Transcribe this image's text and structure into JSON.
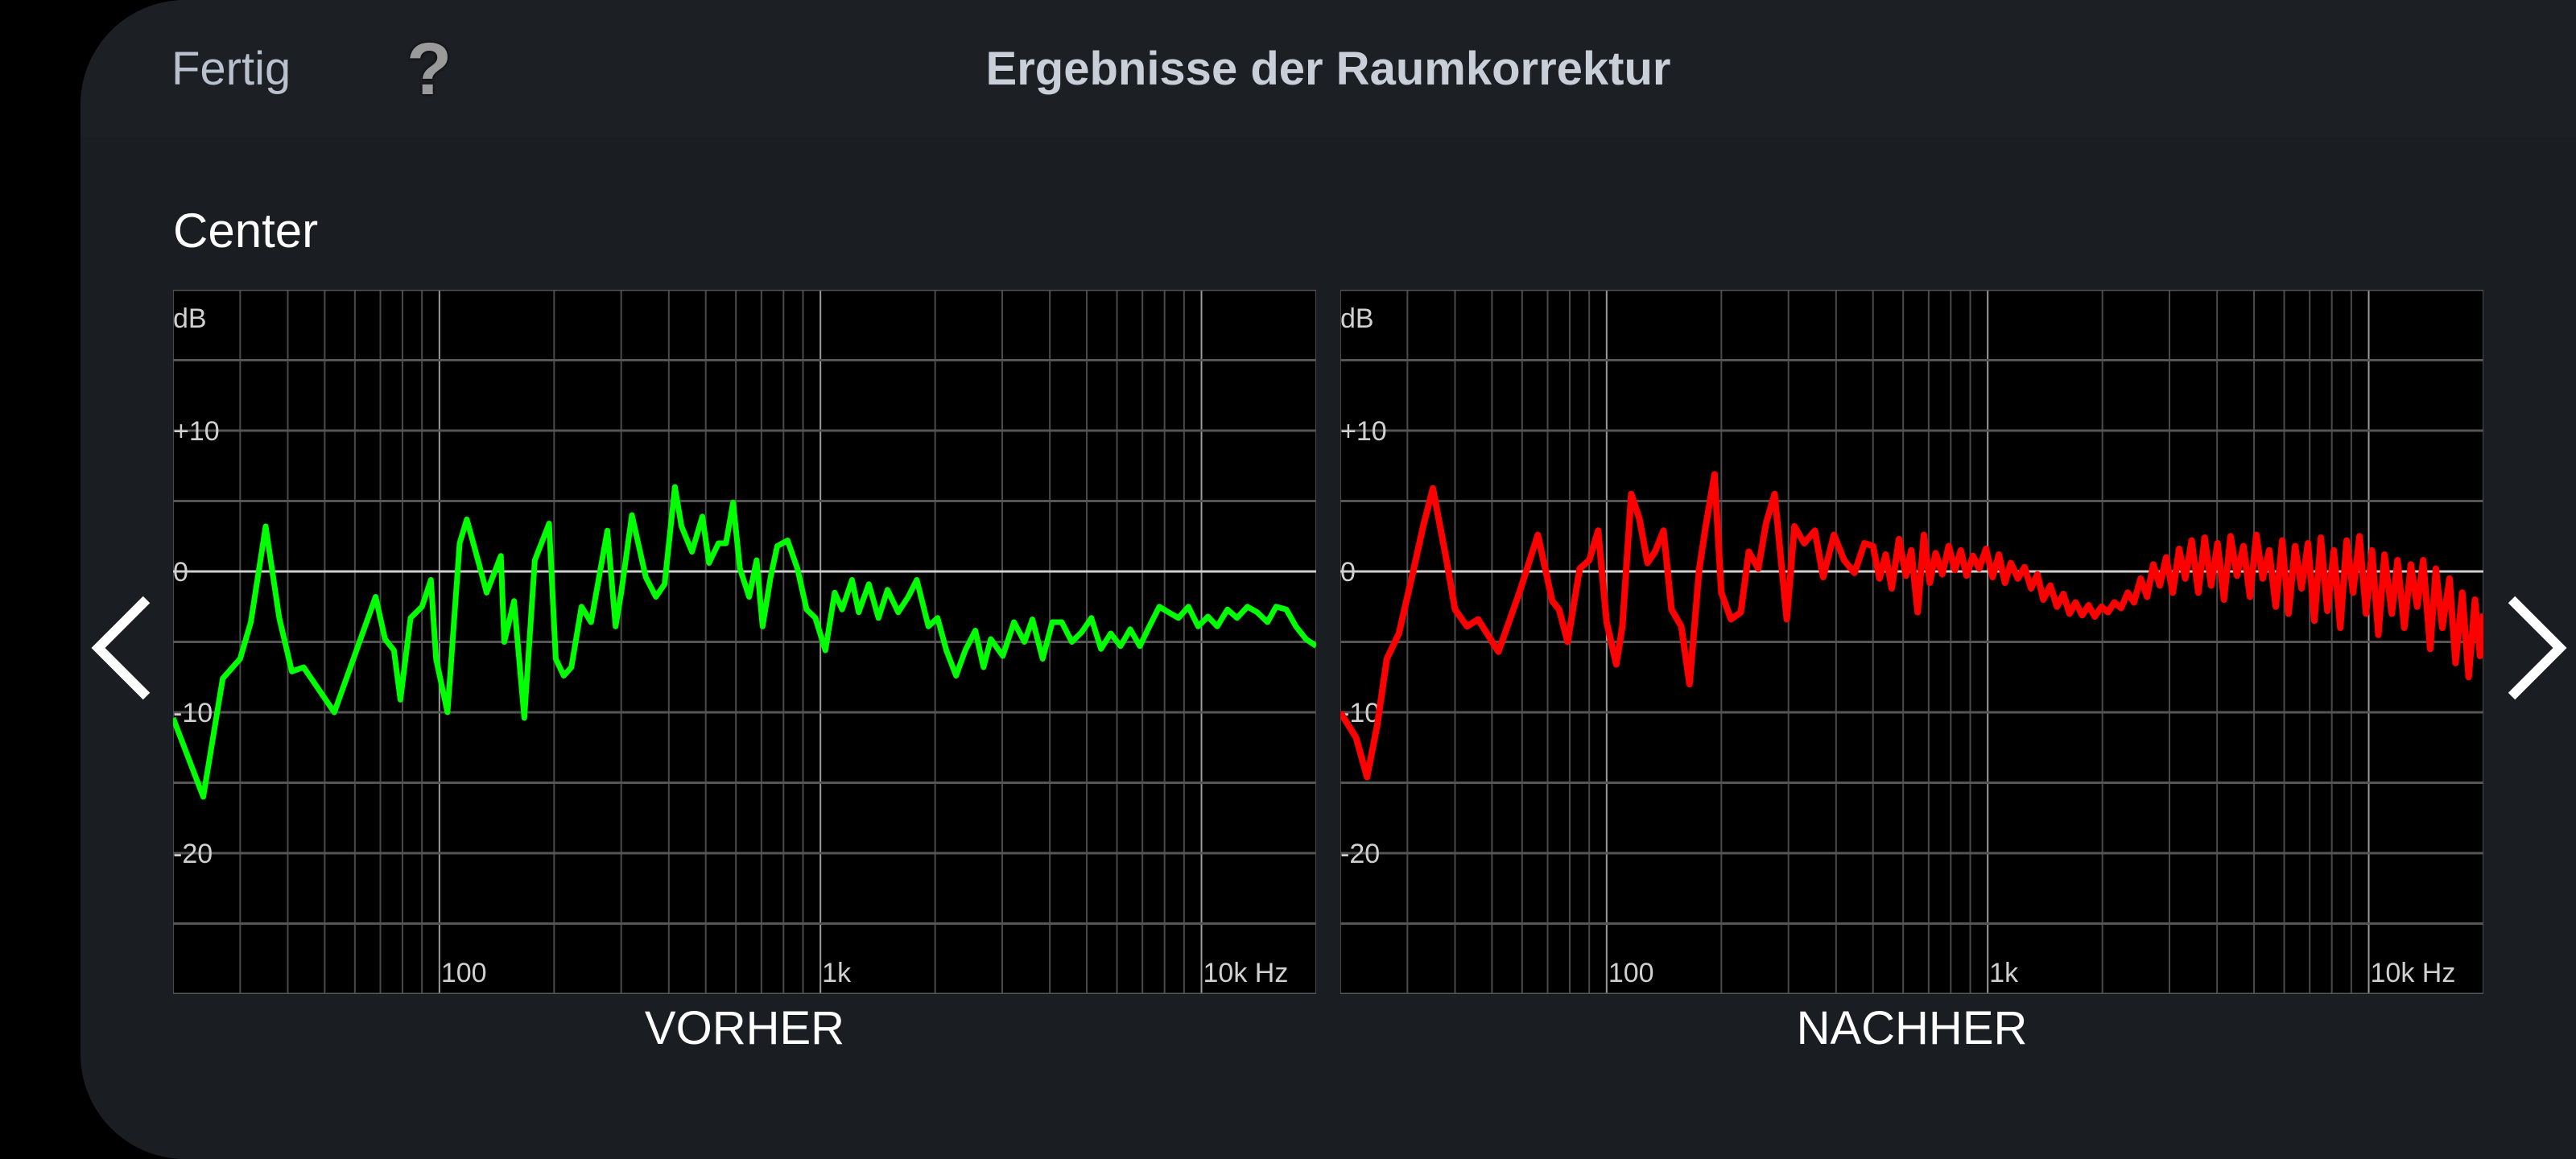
{
  "header": {
    "done_label": "Fertig",
    "help_label": "?",
    "title": "Ergebnisse der Raumkorrektur"
  },
  "channel": "Center",
  "navigation": {
    "prev_icon": "chevron-left-icon",
    "next_icon": "chevron-right-icon"
  },
  "colors": {
    "before": "#00ff00",
    "after": "#ff0000",
    "panel": "#1a1d22",
    "plot_bg": "#000000"
  },
  "chart_data": [
    {
      "type": "line",
      "title": "VORHER",
      "ylabel": "dB",
      "xlabel": "Hz",
      "xscale": "log",
      "xlim": [
        20,
        20000
      ],
      "ylim": [
        -30,
        20
      ],
      "grid": true,
      "y_ticks": [
        {
          "value": 10,
          "label": "+10"
        },
        {
          "value": 0,
          "label": "0"
        },
        {
          "value": -10,
          "label": "-10"
        },
        {
          "value": -20,
          "label": "-20"
        }
      ],
      "x_ticks": [
        {
          "value": 100,
          "label": "100"
        },
        {
          "value": 1000,
          "label": "1k"
        },
        {
          "value": 10000,
          "label": "10k Hz"
        }
      ],
      "series": [
        {
          "name": "VORHER",
          "color": "#00ff00",
          "points": [
            [
              20,
              -10.4
            ],
            [
              24,
              -16
            ],
            [
              27,
              -7.6
            ],
            [
              30,
              -6.2
            ],
            [
              32,
              -3.6
            ],
            [
              35,
              3.2
            ],
            [
              38,
              -3.3
            ],
            [
              41,
              -7.1
            ],
            [
              44,
              -6.8
            ],
            [
              53,
              -10
            ],
            [
              68,
              -1.8
            ],
            [
              72,
              -4.8
            ],
            [
              76,
              -5.6
            ],
            [
              79,
              -9.1
            ],
            [
              84,
              -3.3
            ],
            [
              90,
              -2.5
            ],
            [
              95,
              -0.6
            ],
            [
              98,
              -6.2
            ],
            [
              105,
              -10
            ],
            [
              113,
              2
            ],
            [
              118,
              3.7
            ],
            [
              128,
              0.2
            ],
            [
              133,
              -1.5
            ],
            [
              145,
              1.1
            ],
            [
              148,
              -5
            ],
            [
              157,
              -2.1
            ],
            [
              167,
              -10.4
            ],
            [
              178,
              0.8
            ],
            [
              194,
              3.4
            ],
            [
              202,
              -6.2
            ],
            [
              212,
              -7.4
            ],
            [
              222,
              -6.8
            ],
            [
              236,
              -2.5
            ],
            [
              250,
              -3.6
            ],
            [
              276,
              2.9
            ],
            [
              290,
              -3.9
            ],
            [
              300,
              -1.5
            ],
            [
              320,
              4
            ],
            [
              348,
              -0.4
            ],
            [
              370,
              -1.8
            ],
            [
              390,
              -0.9
            ],
            [
              415,
              6
            ],
            [
              432,
              3.2
            ],
            [
              460,
              1.4
            ],
            [
              490,
              3.9
            ],
            [
              510,
              0.6
            ],
            [
              540,
              2
            ],
            [
              565,
              2
            ],
            [
              590,
              4.9
            ],
            [
              615,
              0.2
            ],
            [
              650,
              -1.8
            ],
            [
              680,
              0.8
            ],
            [
              705,
              -3.9
            ],
            [
              740,
              -0.4
            ],
            [
              770,
              1.8
            ],
            [
              820,
              2.2
            ],
            [
              870,
              0.2
            ],
            [
              920,
              -2.7
            ],
            [
              970,
              -3.3
            ],
            [
              1030,
              -5.6
            ],
            [
              1090,
              -1.5
            ],
            [
              1140,
              -2.7
            ],
            [
              1210,
              -0.6
            ],
            [
              1260,
              -2.9
            ],
            [
              1340,
              -0.9
            ],
            [
              1420,
              -3.3
            ],
            [
              1500,
              -1.3
            ],
            [
              1600,
              -2.9
            ],
            [
              1700,
              -1.8
            ],
            [
              1790,
              -0.6
            ],
            [
              1920,
              -3.9
            ],
            [
              2030,
              -3.3
            ],
            [
              2140,
              -5.6
            ],
            [
              2270,
              -7.4
            ],
            [
              2400,
              -5.6
            ],
            [
              2550,
              -4.2
            ],
            [
              2680,
              -6.8
            ],
            [
              2800,
              -4.8
            ],
            [
              3010,
              -6
            ],
            [
              3220,
              -3.6
            ],
            [
              3430,
              -5
            ],
            [
              3600,
              -3.4
            ],
            [
              3830,
              -6.2
            ],
            [
              4060,
              -3.6
            ],
            [
              4300,
              -3.6
            ],
            [
              4570,
              -5
            ],
            [
              4850,
              -4.3
            ],
            [
              5140,
              -3.3
            ],
            [
              5450,
              -5.5
            ],
            [
              5780,
              -4.4
            ],
            [
              6130,
              -5.3
            ],
            [
              6500,
              -4.1
            ],
            [
              6890,
              -5.3
            ],
            [
              7300,
              -3.9
            ],
            [
              7750,
              -2.5
            ],
            [
              8200,
              -2.9
            ],
            [
              8700,
              -3.3
            ],
            [
              9240,
              -2.5
            ],
            [
              9800,
              -3.9
            ],
            [
              10400,
              -3.2
            ],
            [
              11000,
              -3.9
            ],
            [
              11700,
              -2.7
            ],
            [
              12400,
              -3.3
            ],
            [
              13200,
              -2.5
            ],
            [
              14000,
              -2.9
            ],
            [
              14900,
              -3.6
            ],
            [
              15700,
              -2.5
            ],
            [
              16700,
              -2.7
            ],
            [
              17700,
              -3.9
            ],
            [
              18800,
              -4.8
            ],
            [
              20000,
              -5.3
            ]
          ]
        }
      ]
    },
    {
      "type": "line",
      "title": "NACHHER",
      "ylabel": "dB",
      "xlabel": "Hz",
      "xscale": "log",
      "xlim": [
        20,
        20000
      ],
      "ylim": [
        -30,
        20
      ],
      "grid": true,
      "y_ticks": [
        {
          "value": 10,
          "label": "+10"
        },
        {
          "value": 0,
          "label": "0"
        },
        {
          "value": -10,
          "label": "-10"
        },
        {
          "value": -20,
          "label": "-20"
        }
      ],
      "x_ticks": [
        {
          "value": 100,
          "label": "100"
        },
        {
          "value": 1000,
          "label": "1k"
        },
        {
          "value": 10000,
          "label": "10k Hz"
        }
      ],
      "series": [
        {
          "name": "NACHHER",
          "color": "#ff0000",
          "points": [
            [
              20,
              -10
            ],
            [
              22,
              -11.8
            ],
            [
              23.5,
              -14.6
            ],
            [
              25,
              -10.9
            ],
            [
              26.5,
              -6.2
            ],
            [
              28.5,
              -4.4
            ],
            [
              31,
              -0.1
            ],
            [
              33,
              3.2
            ],
            [
              35,
              5.9
            ],
            [
              38,
              0.8
            ],
            [
              40,
              -2.7
            ],
            [
              43,
              -3.9
            ],
            [
              46,
              -3.4
            ],
            [
              52,
              -5.7
            ],
            [
              59,
              -1.5
            ],
            [
              66,
              2.6
            ],
            [
              72,
              -2.1
            ],
            [
              75,
              -2.7
            ],
            [
              79,
              -5
            ],
            [
              85,
              0.2
            ],
            [
              90,
              0.8
            ],
            [
              95,
              2.9
            ],
            [
              100,
              -3.6
            ],
            [
              106,
              -6.6
            ],
            [
              110,
              -3.9
            ],
            [
              116,
              5.5
            ],
            [
              122,
              3.7
            ],
            [
              128,
              0.6
            ],
            [
              134,
              1.4
            ],
            [
              141,
              2.9
            ],
            [
              148,
              -2.7
            ],
            [
              157,
              -3.9
            ],
            [
              165,
              -8
            ],
            [
              175,
              0.2
            ],
            [
              182,
              3.2
            ],
            [
              192,
              6.9
            ],
            [
              200,
              -1.5
            ],
            [
              212,
              -3.4
            ],
            [
              225,
              -2.9
            ],
            [
              236,
              1.4
            ],
            [
              250,
              0.2
            ],
            [
              262,
              3.4
            ],
            [
              276,
              5.5
            ],
            [
              297,
              -3.4
            ],
            [
              311,
              3.2
            ],
            [
              330,
              2
            ],
            [
              352,
              2.9
            ],
            [
              370,
              -0.4
            ],
            [
              395,
              2.6
            ],
            [
              420,
              0.8
            ],
            [
              447,
              -0.1
            ],
            [
              475,
              2
            ],
            [
              500,
              1.8
            ],
            [
              520,
              -0.5
            ],
            [
              540,
              1.2
            ],
            [
              560,
              -1.2
            ],
            [
              585,
              2.3
            ],
            [
              610,
              -0.3
            ],
            [
              630,
              1.5
            ],
            [
              655,
              -2.9
            ],
            [
              680,
              2.6
            ],
            [
              705,
              -0.8
            ],
            [
              730,
              1.3
            ],
            [
              760,
              -0.2
            ],
            [
              790,
              1.8
            ],
            [
              820,
              0.1
            ],
            [
              850,
              1.5
            ],
            [
              880,
              -0.3
            ],
            [
              915,
              1.1
            ],
            [
              950,
              0.2
            ],
            [
              990,
              1.6
            ],
            [
              1030,
              -0.4
            ],
            [
              1070,
              1.2
            ],
            [
              1110,
              -0.8
            ],
            [
              1150,
              0.6
            ],
            [
              1200,
              -0.5
            ],
            [
              1250,
              0.3
            ],
            [
              1300,
              -1.2
            ],
            [
              1350,
              -0.2
            ],
            [
              1400,
              -2.0
            ],
            [
              1460,
              -1.0
            ],
            [
              1520,
              -2.5
            ],
            [
              1580,
              -1.6
            ],
            [
              1640,
              -3.0
            ],
            [
              1700,
              -2.2
            ],
            [
              1770,
              -3.1
            ],
            [
              1840,
              -2.4
            ],
            [
              1910,
              -3.2
            ],
            [
              1990,
              -2.5
            ],
            [
              2070,
              -2.9
            ],
            [
              2150,
              -2.2
            ],
            [
              2240,
              -2.6
            ],
            [
              2330,
              -1.5
            ],
            [
              2420,
              -2.2
            ],
            [
              2520,
              -0.5
            ],
            [
              2620,
              -1.8
            ],
            [
              2720,
              0.5
            ],
            [
              2830,
              -1.0
            ],
            [
              2940,
              1.0
            ],
            [
              3060,
              -1.5
            ],
            [
              3180,
              1.6
            ],
            [
              3300,
              -0.5
            ],
            [
              3430,
              2.2
            ],
            [
              3570,
              -1.5
            ],
            [
              3710,
              2.4
            ],
            [
              3860,
              -1.0
            ],
            [
              4010,
              2.0
            ],
            [
              4170,
              -2.0
            ],
            [
              4340,
              2.5
            ],
            [
              4510,
              -0.3
            ],
            [
              4690,
              1.8
            ],
            [
              4880,
              -1.8
            ],
            [
              5070,
              2.6
            ],
            [
              5270,
              -0.5
            ],
            [
              5480,
              1.5
            ],
            [
              5700,
              -2.5
            ],
            [
              5930,
              2.2
            ],
            [
              6160,
              -3.0
            ],
            [
              6410,
              1.8
            ],
            [
              6660,
              -1.2
            ],
            [
              6930,
              2.0
            ],
            [
              7200,
              -3.5
            ],
            [
              7490,
              2.4
            ],
            [
              7790,
              -2.8
            ],
            [
              8100,
              1.5
            ],
            [
              8420,
              -4.0
            ],
            [
              8750,
              2.2
            ],
            [
              9100,
              -1.5
            ],
            [
              9460,
              2.5
            ],
            [
              9840,
              -3.0
            ],
            [
              10200,
              1.5
            ],
            [
              10600,
              -4.5
            ],
            [
              11000,
              1.2
            ],
            [
              11500,
              -3.0
            ],
            [
              11900,
              0.8
            ],
            [
              12400,
              -4.0
            ],
            [
              12900,
              0.5
            ],
            [
              13400,
              -2.5
            ],
            [
              13900,
              0.8
            ],
            [
              14500,
              -5.5
            ],
            [
              15000,
              0.2
            ],
            [
              15600,
              -4.0
            ],
            [
              16300,
              -0.5
            ],
            [
              16900,
              -6.5
            ],
            [
              17600,
              -1.5
            ],
            [
              18300,
              -7.5
            ],
            [
              19000,
              -2.0
            ],
            [
              19600,
              -6.0
            ],
            [
              20000,
              -3.0
            ]
          ]
        }
      ]
    }
  ]
}
